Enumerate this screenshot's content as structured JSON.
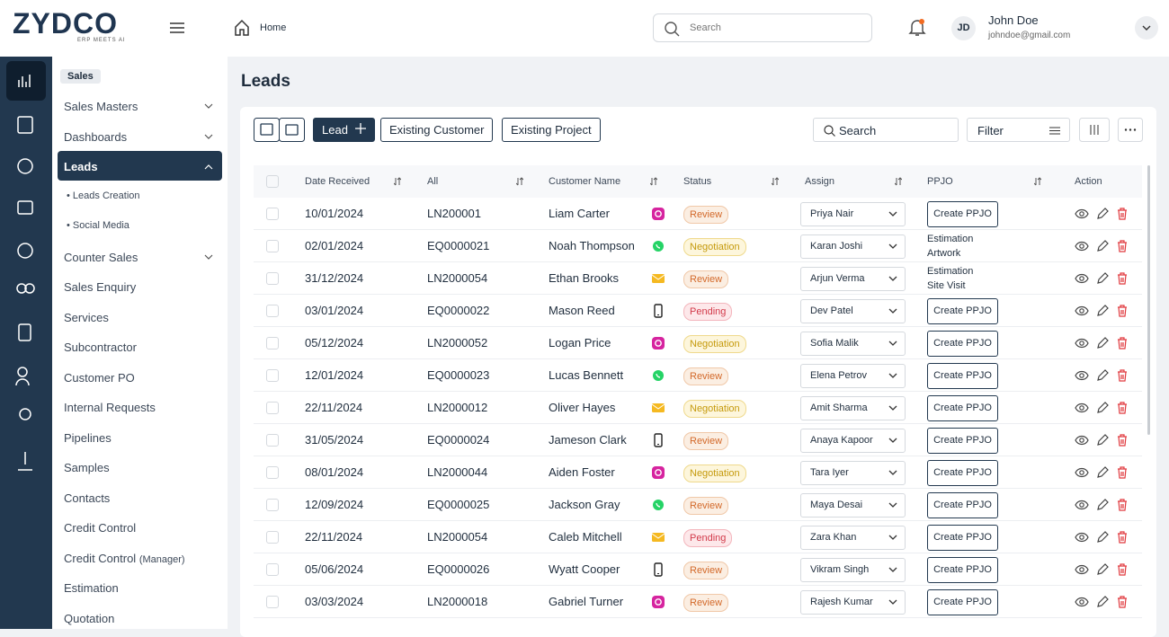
{
  "header": {
    "logo": "ZYDCO",
    "tagline": "ERP MEETS AI",
    "breadcrumb": "Home",
    "search_placeholder": "Search",
    "user": {
      "initials": "JD",
      "name": "John Doe",
      "email": "johndoe@gmail.com"
    }
  },
  "sidebar": {
    "section": "Sales",
    "items": [
      {
        "label": "Sales Masters",
        "expandable": true
      },
      {
        "label": "Dashboards",
        "expandable": true
      },
      {
        "label": "Leads",
        "active": true,
        "expandable": true,
        "children": [
          "Leads Creation",
          "Social Media"
        ]
      },
      {
        "label": "Counter Sales",
        "expandable": true
      },
      {
        "label": "Sales Enquiry"
      },
      {
        "label": "Services"
      },
      {
        "label": "Subcontractor"
      },
      {
        "label": "Customer PO"
      },
      {
        "label": "Internal Requests"
      },
      {
        "label": "Pipelines"
      },
      {
        "label": "Samples"
      },
      {
        "label": "Contacts"
      },
      {
        "label": "Credit Control"
      },
      {
        "label": "Credit Control",
        "note": "(Manager)"
      },
      {
        "label": "Estimation"
      },
      {
        "label": "Quotation"
      }
    ]
  },
  "page": {
    "title": "Leads",
    "toolbar": {
      "lead_button": "Lead",
      "buttons": [
        "Existing Customer",
        "Existing Project"
      ],
      "search_placeholder": "Search",
      "filter": "Filter"
    }
  },
  "table": {
    "columns": [
      "Date Received",
      "All",
      "Customer Name",
      "Status",
      "Assign",
      "PPJO",
      "Action"
    ],
    "rows": [
      {
        "date": "10/01/2024",
        "id": "LN200001",
        "customer": "Liam Carter",
        "source": "instagram",
        "status": "Review",
        "assign": "Priya Nair",
        "ppjo": "Create PPJO"
      },
      {
        "date": "02/01/2024",
        "id": "EQ0000021",
        "customer": "Noah Thompson",
        "source": "whatsapp",
        "status": "Negotiation",
        "assign": "Karan Joshi",
        "ppjo": [
          "Estimation",
          "Artwork"
        ]
      },
      {
        "date": "31/12/2024",
        "id": "LN2000054",
        "customer": "Ethan Brooks",
        "source": "mail",
        "status": "Review",
        "assign": "Arjun Verma",
        "ppjo": [
          "Estimation",
          "Site Visit"
        ]
      },
      {
        "date": "03/01/2024",
        "id": "EQ0000022",
        "customer": "Mason Reed",
        "source": "phone",
        "status": "Pending",
        "assign": "Dev Patel",
        "ppjo": "Create PPJO"
      },
      {
        "date": "05/12/2024",
        "id": "LN2000052",
        "customer": "Logan Price",
        "source": "instagram",
        "status": "Negotiation",
        "assign": "Sofia Malik",
        "ppjo": "Create PPJO"
      },
      {
        "date": "12/01/2024",
        "id": "EQ0000023",
        "customer": "Lucas Bennett",
        "source": "whatsapp",
        "status": "Review",
        "assign": "Elena Petrov",
        "ppjo": "Create PPJO"
      },
      {
        "date": "22/11/2024",
        "id": "LN2000012",
        "customer": "Oliver Hayes",
        "source": "mail",
        "status": "Negotiation",
        "assign": "Amit Sharma",
        "ppjo": "Create PPJO"
      },
      {
        "date": "31/05/2024",
        "id": "EQ0000024",
        "customer": "Jameson Clark",
        "source": "phone",
        "status": "Review",
        "assign": "Anaya Kapoor",
        "ppjo": "Create PPJO"
      },
      {
        "date": "08/01/2024",
        "id": "LN2000044",
        "customer": "Aiden Foster",
        "source": "instagram",
        "status": "Negotiation",
        "assign": "Tara Iyer",
        "ppjo": "Create PPJO"
      },
      {
        "date": "12/09/2024",
        "id": "EQ0000025",
        "customer": "Jackson Gray",
        "source": "whatsapp",
        "status": "Review",
        "assign": "Maya Desai",
        "ppjo": "Create PPJO"
      },
      {
        "date": "22/11/2024",
        "id": "LN2000054",
        "customer": "Caleb Mitchell",
        "source": "mail",
        "status": "Pending",
        "assign": "Zara Khan",
        "ppjo": "Create PPJO"
      },
      {
        "date": "05/06/2024",
        "id": "EQ0000026",
        "customer": "Wyatt Cooper",
        "source": "phone",
        "status": "Review",
        "assign": "Vikram Singh",
        "ppjo": "Create PPJO"
      },
      {
        "date": "03/03/2024",
        "id": "LN2000018",
        "customer": "Gabriel Turner",
        "source": "instagram",
        "status": "Review",
        "assign": "Rajesh Kumar",
        "ppjo": "Create PPJO"
      }
    ]
  }
}
